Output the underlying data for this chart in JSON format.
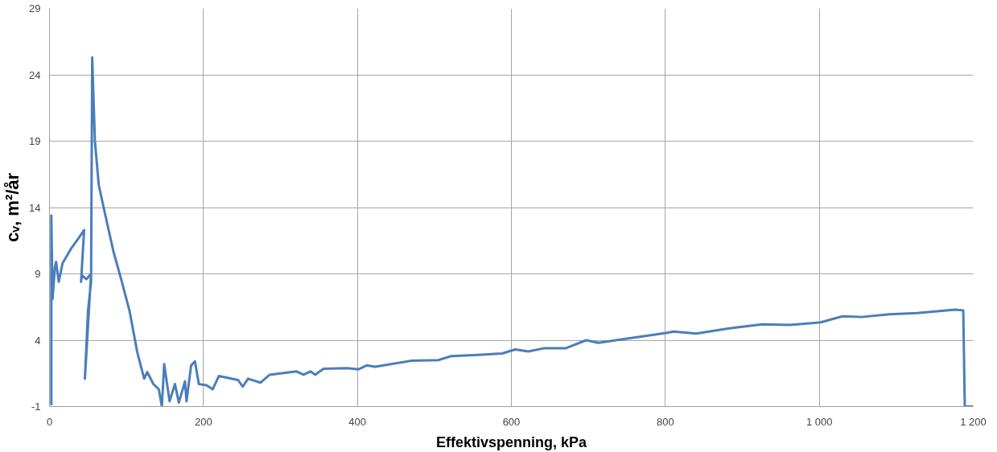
{
  "chart_data": {
    "type": "line",
    "xlabel": "Effektivspenning, kPa",
    "ylabel": "cᵥ, m²/år",
    "xlim": [
      0,
      1200
    ],
    "ylim": [
      -1,
      29
    ],
    "xticks": [
      0,
      200,
      400,
      600,
      800,
      {
        "value": 1000,
        "label": "1 000"
      },
      {
        "value": 1200,
        "label": "1 200"
      }
    ],
    "yticks": [
      -1,
      4,
      9,
      14,
      19,
      24,
      29
    ],
    "grid": true,
    "line_style": "solid",
    "marker": "none",
    "series": [
      {
        "color": "#4a7ebb",
        "x": [
          2.4,
          2.4,
          4,
          7,
          8.6,
          12,
          17,
          28,
          38,
          45,
          41,
          42,
          48,
          54,
          46,
          50,
          54,
          55.5,
          59,
          64,
          73,
          83,
          94,
          104,
          114,
          123,
          127,
          135,
          142,
          146,
          149,
          156,
          163,
          168,
          176,
          178,
          184,
          189,
          194,
          204,
          212,
          220,
          245,
          251,
          258,
          274,
          286,
          321,
          330,
          339,
          345,
          356,
          387,
          401,
          412,
          423,
          470,
          505,
          522,
          557,
          588,
          605,
          622,
          643,
          671,
          697,
          713,
          801,
          811,
          840,
          883,
          926,
          962,
          1002,
          1030,
          1055,
          1091,
          1127,
          1177,
          1187,
          1189,
          1200
        ],
        "values": [
          -0.9,
          13.4,
          7.1,
          9.5,
          9.9,
          8.4,
          9.8,
          10.9,
          11.7,
          12.3,
          8.4,
          8.9,
          8.6,
          9.0,
          1.1,
          6.2,
          8.4,
          25.3,
          19.0,
          15.7,
          13.3,
          10.7,
          8.4,
          6.2,
          3.1,
          1.1,
          1.6,
          0.7,
          0.3,
          -1.0,
          2.2,
          -0.6,
          0.7,
          -0.7,
          0.9,
          -0.6,
          2.1,
          2.4,
          0.7,
          0.6,
          0.3,
          1.3,
          1.0,
          0.5,
          1.1,
          0.8,
          1.4,
          1.65,
          1.4,
          1.65,
          1.4,
          1.85,
          1.9,
          1.8,
          2.1,
          2.0,
          2.45,
          2.5,
          2.8,
          2.9,
          3.0,
          3.3,
          3.15,
          3.4,
          3.4,
          4.0,
          3.8,
          4.55,
          4.65,
          4.5,
          4.9,
          5.2,
          5.15,
          5.35,
          5.8,
          5.75,
          5.95,
          6.05,
          6.3,
          6.25,
          -1,
          -1
        ]
      }
    ]
  }
}
